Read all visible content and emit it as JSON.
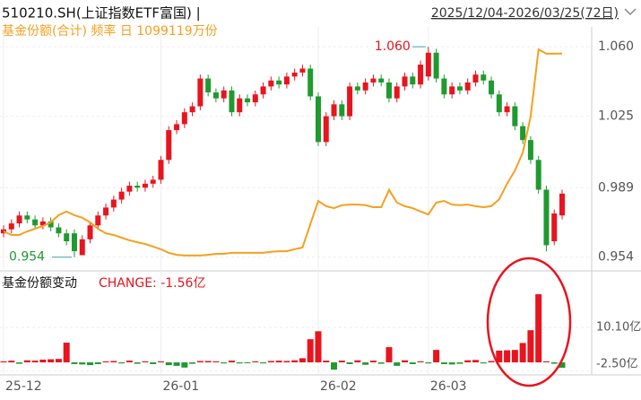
{
  "chart_data": [
    {
      "type": "candlestick",
      "title": "510210.SH(上证指数ETF富国) |",
      "date_range": "2025/12/04-2026/03/25(72日)",
      "subtitle": "基金份额(合计) 频率 日 1099119万份",
      "up_color": "#e8141e",
      "down_color": "#1f9a2f",
      "xlim": [
        0,
        71
      ],
      "xticks": [
        {
          "value": 0,
          "label": "25-12"
        },
        {
          "value": 20,
          "label": "26-01"
        },
        {
          "value": 40,
          "label": "26-02"
        },
        {
          "value": 54,
          "label": "26-03"
        }
      ],
      "ylim": [
        0.948,
        1.07
      ],
      "yticks": [
        {
          "value": 1.06,
          "label": "1.060"
        },
        1.025,
        0.989,
        0.954
      ],
      "open": [
        0.966,
        0.968,
        0.971,
        0.975,
        0.973,
        0.97,
        0.972,
        0.969,
        0.966,
        0.966,
        0.955,
        0.963,
        0.97,
        0.975,
        0.979,
        0.983,
        0.987,
        0.99,
        0.989,
        0.991,
        0.993,
        1.003,
        1.018,
        1.021,
        1.027,
        1.03,
        1.044,
        1.037,
        1.034,
        1.038,
        1.027,
        1.034,
        1.032,
        1.036,
        1.04,
        1.043,
        1.041,
        1.045,
        1.047,
        1.049,
        1.035,
        1.012,
        1.025,
        1.031,
        1.025,
        1.04,
        1.038,
        1.042,
        1.044,
        1.042,
        1.034,
        1.04,
        1.045,
        1.041,
        1.045,
        1.057,
        1.044,
        1.036,
        1.04,
        1.038,
        1.042,
        1.046,
        1.043,
        1.036,
        1.027,
        1.03,
        1.02,
        1.013,
        1.003,
        0.988,
        0.962,
        0.975
      ],
      "high": [
        0.97,
        0.973,
        0.977,
        0.977,
        0.975,
        0.974,
        0.974,
        0.971,
        0.968,
        0.968,
        0.965,
        0.972,
        0.977,
        0.981,
        0.985,
        0.989,
        0.992,
        0.992,
        0.993,
        0.995,
        1.005,
        1.02,
        1.023,
        1.029,
        1.032,
        1.046,
        1.046,
        1.039,
        1.04,
        1.04,
        1.036,
        1.036,
        1.038,
        1.042,
        1.045,
        1.045,
        1.047,
        1.049,
        1.051,
        1.051,
        1.037,
        1.027,
        1.033,
        1.033,
        1.042,
        1.042,
        1.044,
        1.046,
        1.046,
        1.044,
        1.042,
        1.047,
        1.047,
        1.053,
        1.06,
        1.059,
        1.046,
        1.042,
        1.042,
        1.044,
        1.048,
        1.048,
        1.045,
        1.038,
        1.032,
        1.032,
        1.022,
        1.015,
        1.005,
        0.99,
        0.978,
        0.988
      ],
      "low": [
        0.964,
        0.966,
        0.969,
        0.971,
        0.968,
        0.968,
        0.967,
        0.964,
        0.96,
        0.954,
        0.955,
        0.961,
        0.968,
        0.973,
        0.977,
        0.981,
        0.985,
        0.987,
        0.987,
        0.989,
        0.991,
        1.001,
        1.016,
        1.019,
        1.025,
        1.028,
        1.035,
        1.032,
        1.032,
        1.025,
        1.025,
        1.03,
        1.03,
        1.034,
        1.038,
        1.039,
        1.039,
        1.043,
        1.045,
        1.033,
        1.01,
        1.01,
        1.023,
        1.023,
        1.023,
        1.036,
        1.036,
        1.04,
        1.04,
        1.032,
        1.032,
        1.038,
        1.039,
        1.039,
        1.043,
        1.042,
        1.034,
        1.034,
        1.036,
        1.036,
        1.04,
        1.041,
        1.034,
        1.025,
        1.025,
        1.018,
        1.011,
        1.001,
        0.986,
        0.957,
        0.96,
        0.973
      ],
      "close": [
        0.968,
        0.971,
        0.975,
        0.973,
        0.97,
        0.972,
        0.969,
        0.966,
        0.962,
        0.957,
        0.963,
        0.97,
        0.975,
        0.979,
        0.983,
        0.987,
        0.99,
        0.989,
        0.991,
        0.993,
        1.003,
        1.018,
        1.021,
        1.027,
        1.03,
        1.044,
        1.037,
        1.034,
        1.038,
        1.027,
        1.034,
        1.032,
        1.036,
        1.04,
        1.043,
        1.041,
        1.045,
        1.047,
        1.049,
        1.035,
        1.012,
        1.025,
        1.031,
        1.025,
        1.04,
        1.038,
        1.042,
        1.044,
        1.042,
        1.034,
        1.04,
        1.045,
        1.041,
        1.051,
        1.057,
        1.044,
        1.036,
        1.04,
        1.038,
        1.042,
        1.046,
        1.043,
        1.036,
        1.027,
        1.03,
        1.02,
        1.013,
        1.003,
        0.988,
        0.96,
        0.976,
        0.986
      ],
      "annotations": [
        {
          "label": "1.060",
          "value": 1.06,
          "color": "#e8141e"
        },
        {
          "label": "0.954",
          "value": 0.954,
          "color": "#1f9a2f"
        }
      ],
      "y2lim": [
        448000,
        1180000
      ],
      "line": {
        "color": "#f5a020",
        "axis": "y2",
        "values": [
          562000,
          551000,
          551000,
          562000,
          570000,
          578000,
          589000,
          611000,
          622000,
          611000,
          603000,
          589000,
          570000,
          556000,
          551000,
          543000,
          535000,
          529000,
          524000,
          516000,
          508000,
          497000,
          491000,
          489000,
          489000,
          489000,
          491000,
          494000,
          494000,
          497000,
          497000,
          497000,
          497000,
          497000,
          500000,
          502000,
          502000,
          508000,
          513000,
          584000,
          654000,
          638000,
          632000,
          641000,
          643000,
          643000,
          641000,
          635000,
          635000,
          687000,
          649000,
          638000,
          632000,
          622000,
          613000,
          649000,
          654000,
          643000,
          641000,
          643000,
          638000,
          635000,
          638000,
          659000,
          706000,
          746000,
          800000,
          909000,
          1112000,
          1099000,
          1099000,
          1099119
        ]
      }
    },
    {
      "type": "bar",
      "title": "基金份额变动",
      "subtitle": "CHANGE: -1.56亿",
      "up_color": "#e8141e",
      "down_color": "#1f9a2f",
      "xlim": [
        0,
        71
      ],
      "ylim": [
        -3.1,
        20.5
      ],
      "yticks": [
        {
          "value": 10.1,
          "label": "10.10亿"
        },
        {
          "value": -2.5,
          "label": "-2.50亿"
        }
      ],
      "values": [
        0.3,
        0.5,
        -0.4,
        0.6,
        0.5,
        0.8,
        0.9,
        1.0,
        5.7,
        -0.5,
        -0.6,
        -0.8,
        -0.5,
        0.3,
        0.4,
        -0.3,
        0.5,
        -0.4,
        0.3,
        -0.5,
        0.3,
        -0.8,
        -1.0,
        -1.5,
        -0.4,
        0.4,
        0.4,
        0.3,
        -0.3,
        0.5,
        -0.3,
        -0.2,
        0.3,
        -0.3,
        0.4,
        0.5,
        0.4,
        0.6,
        1.2,
        6.7,
        9.0,
        0.5,
        -2.1,
        0.5,
        -0.5,
        0.6,
        -0.7,
        0.5,
        -0.4,
        4.4,
        -1.0,
        0.6,
        -0.5,
        0.3,
        -0.3,
        3.6,
        -0.5,
        -0.6,
        -0.4,
        0.6,
        0.7,
        -0.3,
        0.4,
        3.4,
        3.5,
        3.6,
        5.6,
        9.3,
        19.7,
        0.3,
        -0.4,
        -1.56
      ]
    }
  ]
}
